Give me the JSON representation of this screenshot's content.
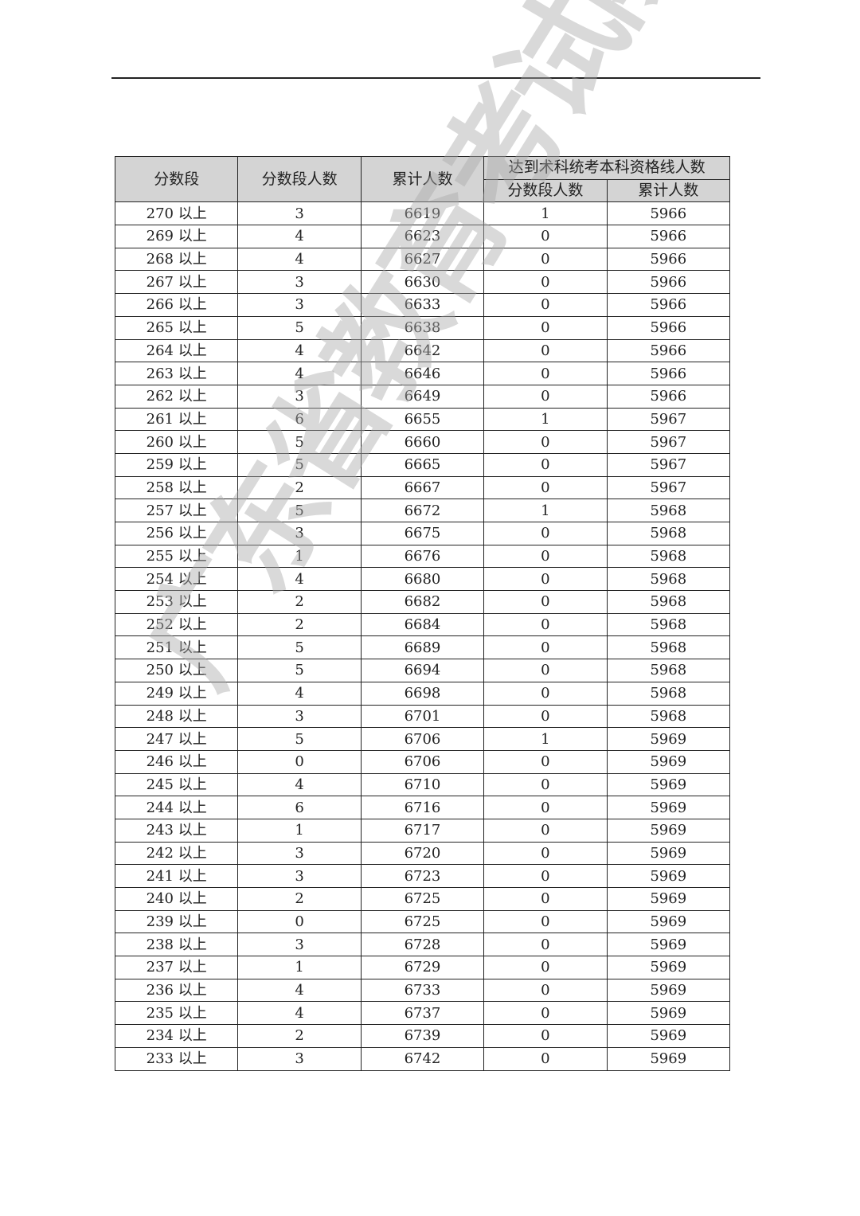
{
  "watermark": "广东省教育考试院",
  "table": {
    "headers": {
      "score_band": "分数段",
      "band_count": "分数段人数",
      "cumulative": "累计人数",
      "group": "达到术科统考本科资格线人数",
      "sub_band_count": "分数段人数",
      "sub_cumulative": "累计人数"
    },
    "rows": [
      [
        "270 以上",
        "3",
        "6619",
        "1",
        "5966"
      ],
      [
        "269 以上",
        "4",
        "6623",
        "0",
        "5966"
      ],
      [
        "268 以上",
        "4",
        "6627",
        "0",
        "5966"
      ],
      [
        "267 以上",
        "3",
        "6630",
        "0",
        "5966"
      ],
      [
        "266 以上",
        "3",
        "6633",
        "0",
        "5966"
      ],
      [
        "265 以上",
        "5",
        "6638",
        "0",
        "5966"
      ],
      [
        "264 以上",
        "4",
        "6642",
        "0",
        "5966"
      ],
      [
        "263 以上",
        "4",
        "6646",
        "0",
        "5966"
      ],
      [
        "262 以上",
        "3",
        "6649",
        "0",
        "5966"
      ],
      [
        "261 以上",
        "6",
        "6655",
        "1",
        "5967"
      ],
      [
        "260 以上",
        "5",
        "6660",
        "0",
        "5967"
      ],
      [
        "259 以上",
        "5",
        "6665",
        "0",
        "5967"
      ],
      [
        "258 以上",
        "2",
        "6667",
        "0",
        "5967"
      ],
      [
        "257 以上",
        "5",
        "6672",
        "1",
        "5968"
      ],
      [
        "256 以上",
        "3",
        "6675",
        "0",
        "5968"
      ],
      [
        "255 以上",
        "1",
        "6676",
        "0",
        "5968"
      ],
      [
        "254 以上",
        "4",
        "6680",
        "0",
        "5968"
      ],
      [
        "253 以上",
        "2",
        "6682",
        "0",
        "5968"
      ],
      [
        "252 以上",
        "2",
        "6684",
        "0",
        "5968"
      ],
      [
        "251 以上",
        "5",
        "6689",
        "0",
        "5968"
      ],
      [
        "250 以上",
        "5",
        "6694",
        "0",
        "5968"
      ],
      [
        "249 以上",
        "4",
        "6698",
        "0",
        "5968"
      ],
      [
        "248 以上",
        "3",
        "6701",
        "0",
        "5968"
      ],
      [
        "247 以上",
        "5",
        "6706",
        "1",
        "5969"
      ],
      [
        "246 以上",
        "0",
        "6706",
        "0",
        "5969"
      ],
      [
        "245 以上",
        "4",
        "6710",
        "0",
        "5969"
      ],
      [
        "244 以上",
        "6",
        "6716",
        "0",
        "5969"
      ],
      [
        "243 以上",
        "1",
        "6717",
        "0",
        "5969"
      ],
      [
        "242 以上",
        "3",
        "6720",
        "0",
        "5969"
      ],
      [
        "241 以上",
        "3",
        "6723",
        "0",
        "5969"
      ],
      [
        "240 以上",
        "2",
        "6725",
        "0",
        "5969"
      ],
      [
        "239 以上",
        "0",
        "6725",
        "0",
        "5969"
      ],
      [
        "238 以上",
        "3",
        "6728",
        "0",
        "5969"
      ],
      [
        "237 以上",
        "1",
        "6729",
        "0",
        "5969"
      ],
      [
        "236 以上",
        "4",
        "6733",
        "0",
        "5969"
      ],
      [
        "235 以上",
        "4",
        "6737",
        "0",
        "5969"
      ],
      [
        "234 以上",
        "2",
        "6739",
        "0",
        "5969"
      ],
      [
        "233 以上",
        "3",
        "6742",
        "0",
        "5969"
      ]
    ]
  }
}
